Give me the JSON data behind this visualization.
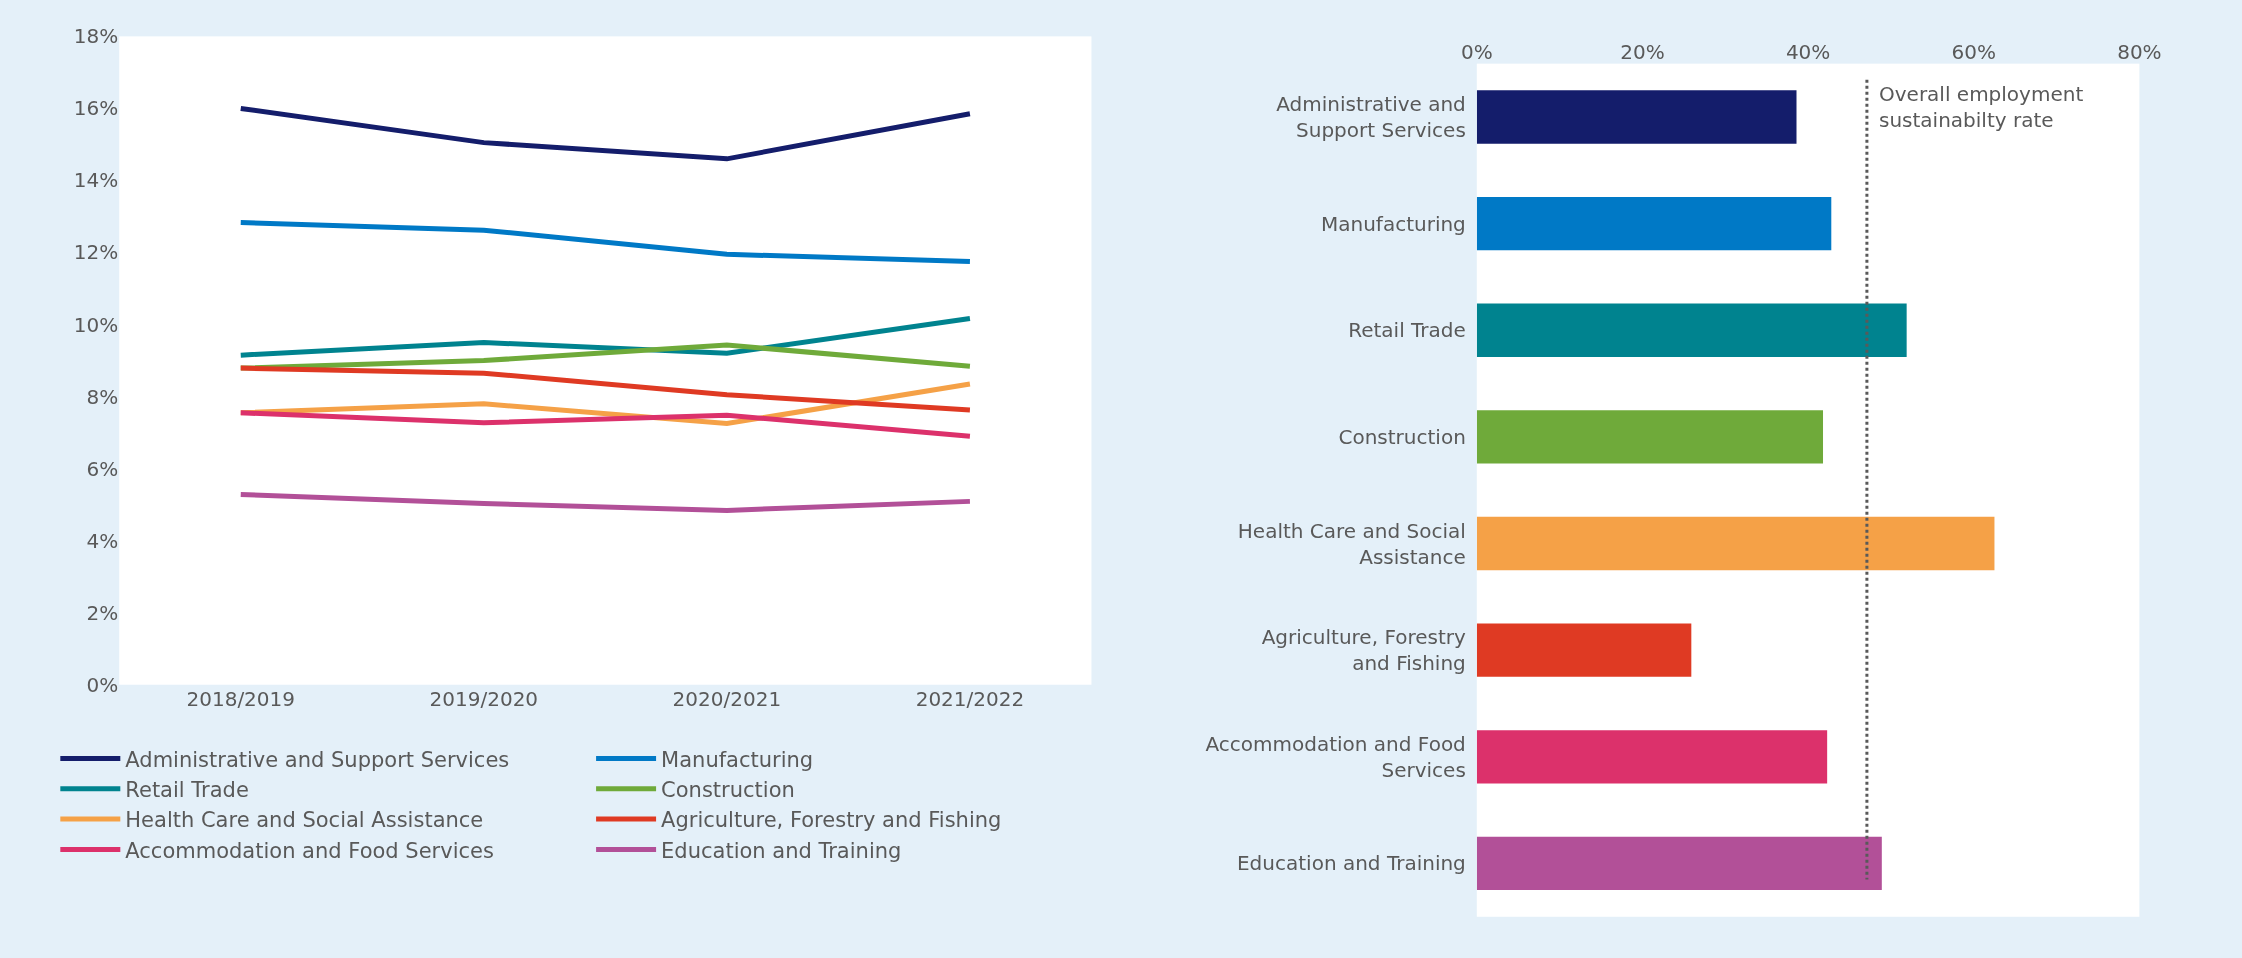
{
  "chart_data": [
    {
      "type": "line",
      "categories": [
        "2018/2019",
        "2019/2020",
        "2020/2021",
        "2021/2022"
      ],
      "series": [
        {
          "name": "Administrative and Support Services",
          "color": "#141d6b",
          "values": [
            16.0,
            15.05,
            14.6,
            15.85
          ]
        },
        {
          "name": "Manufacturing",
          "color": "#0079c6",
          "values": [
            12.83,
            12.62,
            11.95,
            11.75
          ]
        },
        {
          "name": "Retail Trade",
          "color": "#00838f",
          "values": [
            9.15,
            9.5,
            9.2,
            10.17
          ]
        },
        {
          "name": "Construction",
          "color": "#6faa3a",
          "values": [
            8.79,
            9.0,
            9.43,
            8.84
          ]
        },
        {
          "name": "Health Care and Social Assistance",
          "color": "#f5a147",
          "values": [
            7.55,
            7.8,
            7.25,
            8.35
          ]
        },
        {
          "name": "Agriculture, Forestry and Fishing",
          "color": "#df3a23",
          "values": [
            8.79,
            8.65,
            8.05,
            7.63
          ]
        },
        {
          "name": "Accommodation and Food Services",
          "color": "#dc316b",
          "values": [
            7.55,
            7.27,
            7.48,
            6.9
          ]
        },
        {
          "name": "Education and Training",
          "color": "#b25098",
          "values": [
            5.28,
            5.03,
            4.84,
            5.09
          ]
        }
      ],
      "ylim": [
        0,
        18
      ],
      "yticks": [
        {
          "value": 0,
          "label": "0%"
        },
        {
          "value": 2,
          "label": "2%"
        },
        {
          "value": 4,
          "label": "4%"
        },
        {
          "value": 6,
          "label": "6%"
        },
        {
          "value": 8,
          "label": "8%"
        },
        {
          "value": 10,
          "label": "10%"
        },
        {
          "value": 12,
          "label": "12%"
        },
        {
          "value": 14,
          "label": "14%"
        },
        {
          "value": 16,
          "label": "16%"
        },
        {
          "value": 18,
          "label": "18%"
        }
      ],
      "legend": "bottom",
      "marker": "none",
      "line_style": "solid"
    },
    {
      "type": "bar",
      "orientation": "horizontal",
      "categories": [
        "Administrative and Support Services",
        "Manufacturing",
        "Retail Trade",
        "Construction",
        "Health Care and Social Assistance",
        "Agriculture, Forestry and Fishing",
        "Accommodation and Food Services",
        "Education and Training"
      ],
      "values": [
        38.6,
        42.8,
        51.9,
        41.8,
        62.5,
        25.9,
        42.3,
        48.9
      ],
      "colors": [
        "#141d6b",
        "#0079c6",
        "#00838f",
        "#6faa3a",
        "#f5a147",
        "#df3a23",
        "#dc316b",
        "#b25098"
      ],
      "xlim": [
        0,
        80
      ],
      "xticks": [
        {
          "value": 0,
          "label": "0%"
        },
        {
          "value": 20,
          "label": "20%"
        },
        {
          "value": 40,
          "label": "40%"
        },
        {
          "value": 60,
          "label": "60%"
        },
        {
          "value": 80,
          "label": "80%"
        }
      ],
      "ref_lines": [
        {
          "axis": "x",
          "value": 47.1,
          "label": "Overall employment sustainabilty rate",
          "color": "#595959",
          "line_style": "dotted"
        }
      ]
    }
  ]
}
